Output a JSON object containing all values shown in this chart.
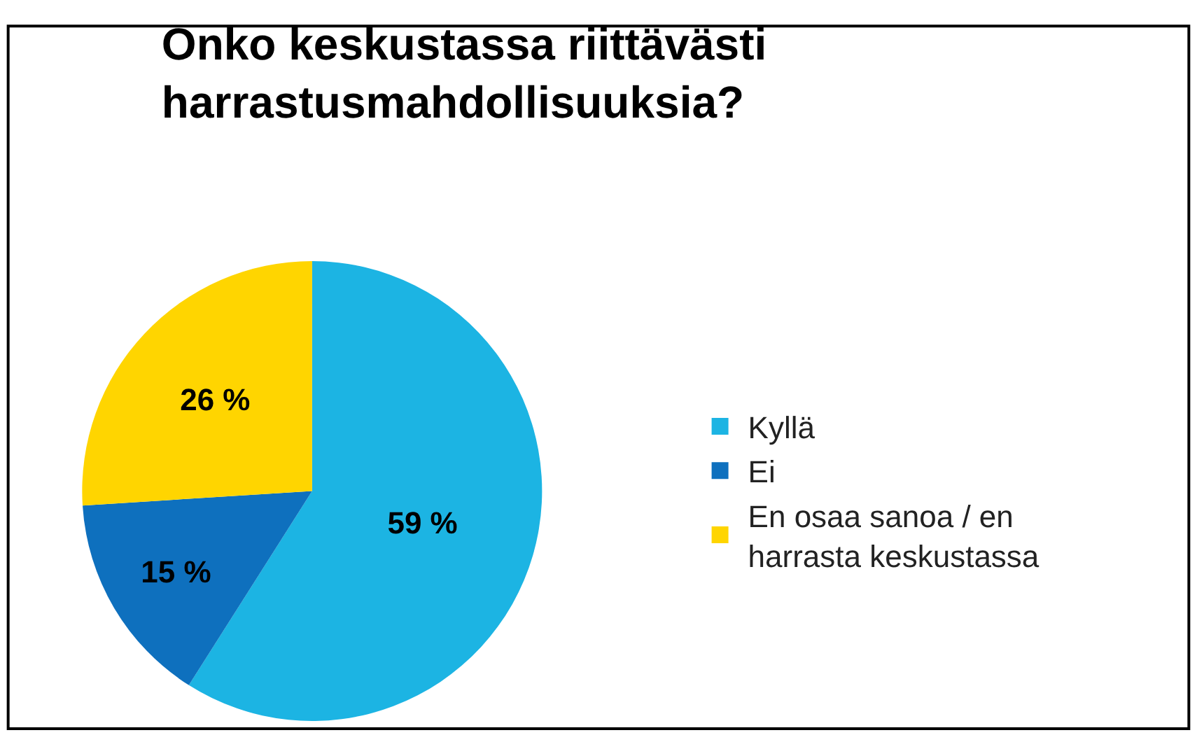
{
  "chart_data": {
    "type": "pie",
    "title": "Onko keskustassa riittävästi harrastusmahdollisuuksia?",
    "categories": [
      "Kyllä",
      "Ei",
      "En osaa sanoa / en harrasta keskustassa"
    ],
    "values": [
      59,
      15,
      26
    ],
    "value_labels": [
      "59 %",
      "15 %",
      "26 %"
    ],
    "colors": [
      "#1cb4e3",
      "#0e70be",
      "#ffd500"
    ],
    "legend": "right"
  }
}
